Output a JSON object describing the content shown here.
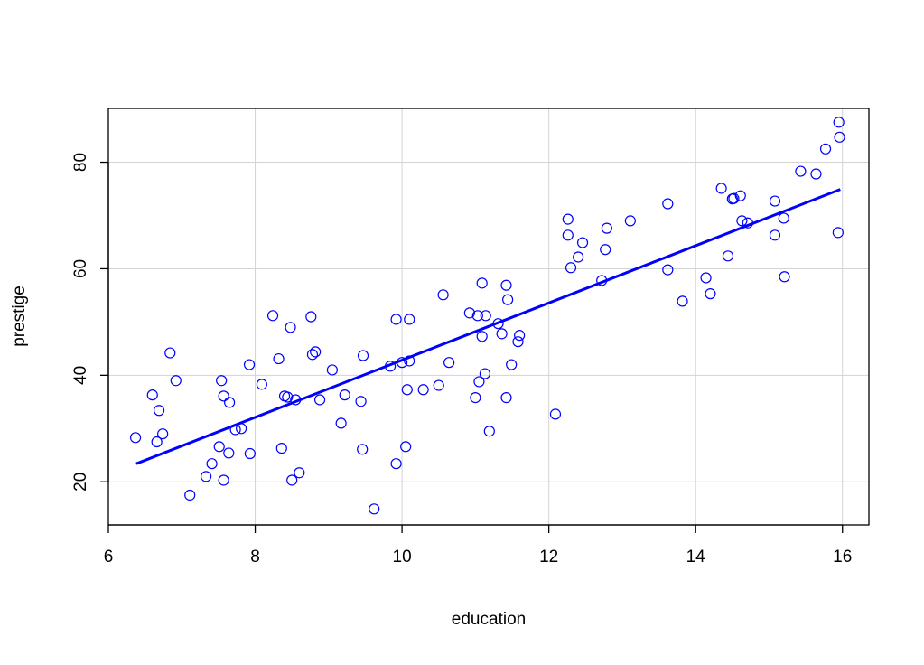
{
  "chart_data": {
    "type": "scatter",
    "x_label": "education",
    "y_label": "prestige",
    "xlim": [
      6.0,
      16.36
    ],
    "ylim": [
      11.9,
      90.1
    ],
    "xticks": [
      6,
      8,
      10,
      12,
      14,
      16
    ],
    "yticks": [
      20,
      40,
      60,
      80
    ],
    "grid": true,
    "series": [
      {
        "type": "scatter",
        "color": "#0000ff",
        "x": [
          6.37,
          6.6,
          6.66,
          6.69,
          6.74,
          6.84,
          6.92,
          7.11,
          7.33,
          7.41,
          7.51,
          7.54,
          7.57,
          7.57,
          7.64,
          7.65,
          7.73,
          7.81,
          7.92,
          7.93,
          8.09,
          8.24,
          8.32,
          8.36,
          8.4,
          8.44,
          8.48,
          8.5,
          8.55,
          8.6,
          8.76,
          8.78,
          8.82,
          8.88,
          9.05,
          9.17,
          9.22,
          9.44,
          9.46,
          9.47,
          9.62,
          9.84,
          9.92,
          9.92,
          10.0,
          10.05,
          10.07,
          10.1,
          10.1,
          10.29,
          10.5,
          10.56,
          10.64,
          10.92,
          11.0,
          11.03,
          11.05,
          11.09,
          11.09,
          11.13,
          11.14,
          11.19,
          11.31,
          11.36,
          11.42,
          11.42,
          11.44,
          11.49,
          11.58,
          11.6,
          12.09,
          12.26,
          12.26,
          12.3,
          12.4,
          12.46,
          12.72,
          12.77,
          12.79,
          13.11,
          13.62,
          13.62,
          13.82,
          14.14,
          14.2,
          14.35,
          14.44,
          14.5,
          14.52,
          14.61,
          14.63,
          14.71,
          15.08,
          15.08,
          15.2,
          15.21,
          15.43,
          15.64,
          15.77,
          15.94,
          15.95,
          15.96
        ],
        "values": [
          28.3,
          36.3,
          27.5,
          33.4,
          29.0,
          44.2,
          39.0,
          17.5,
          21.0,
          23.4,
          26.6,
          39.0,
          36.1,
          20.3,
          25.4,
          34.9,
          29.8,
          30.0,
          42.0,
          25.3,
          38.3,
          51.2,
          43.1,
          26.3,
          36.1,
          35.9,
          49.0,
          20.3,
          35.4,
          21.7,
          51.0,
          43.9,
          44.4,
          35.4,
          41.0,
          31.0,
          36.3,
          35.1,
          26.1,
          43.7,
          14.9,
          41.7,
          23.4,
          50.5,
          42.4,
          26.6,
          37.3,
          42.7,
          50.5,
          37.3,
          38.1,
          55.1,
          42.4,
          51.7,
          35.8,
          51.2,
          38.8,
          57.3,
          47.3,
          40.3,
          51.2,
          29.5,
          49.7,
          47.8,
          35.8,
          56.9,
          54.2,
          42.0,
          46.3,
          47.5,
          32.7,
          69.3,
          66.3,
          60.2,
          62.2,
          64.9,
          57.8,
          63.6,
          67.6,
          69.0,
          72.2,
          59.8,
          53.9,
          58.3,
          55.3,
          75.1,
          62.4,
          73.1,
          73.2,
          73.7,
          69.0,
          68.6,
          72.7,
          66.3,
          69.5,
          58.5,
          78.3,
          77.8,
          82.5,
          66.8,
          87.5,
          84.7
        ]
      },
      {
        "type": "line",
        "color": "#0000ff",
        "x": [
          6.38,
          15.97
        ],
        "values": [
          23.4,
          74.9
        ]
      }
    ]
  }
}
